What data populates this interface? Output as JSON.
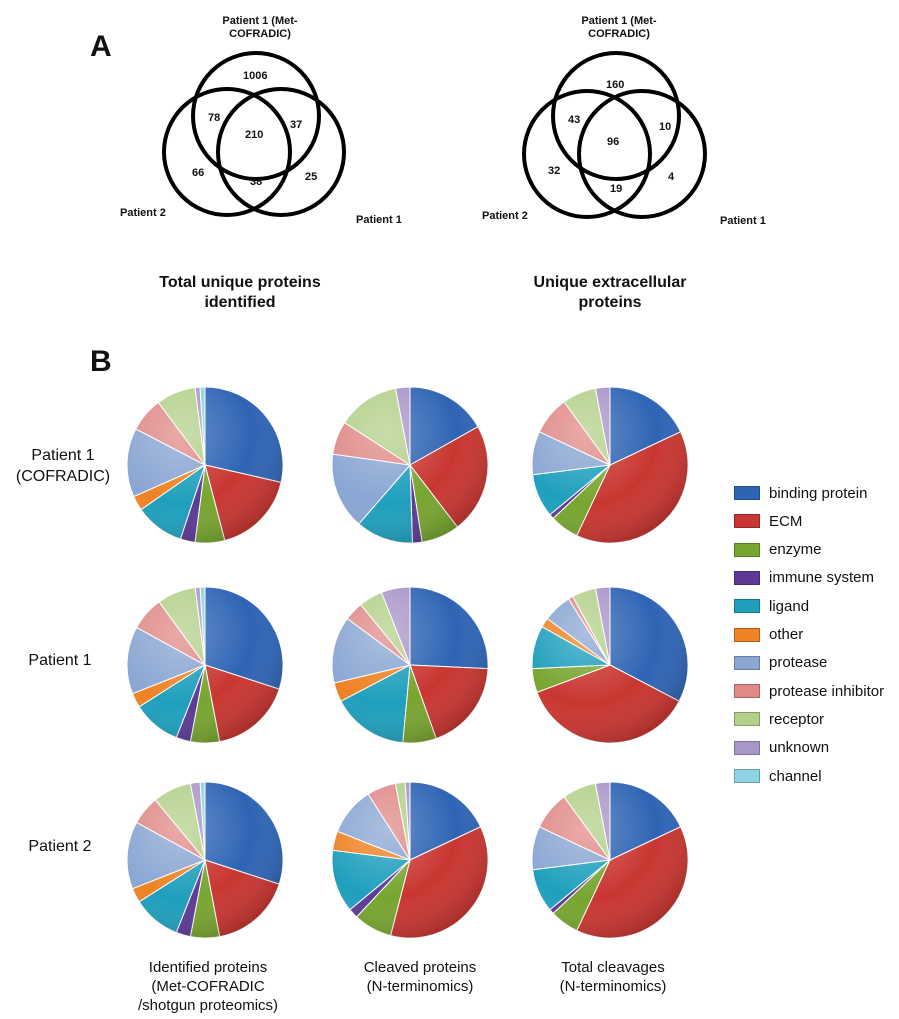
{
  "panels": {
    "a_label": "A",
    "b_label": "B"
  },
  "venn": [
    {
      "top_label": "Patient 1 (Met-\nCOFRADIC)",
      "left_label": "Patient 2",
      "right_label": "Patient 1",
      "title": "Total unique proteins\nidentified",
      "regions": {
        "top_only": "1006",
        "top_left": "78",
        "center": "210",
        "top_right": "37",
        "left_only": "66",
        "left_right": "38",
        "right_only": "25"
      }
    },
    {
      "top_label": "Patient 1 (Met-\nCOFRADIC)",
      "left_label": "Patient 2",
      "right_label": "Patient 1",
      "title": "Unique extracellular\nproteins",
      "regions": {
        "top_only": "160",
        "top_left": "43",
        "center": "96",
        "top_right": "10",
        "left_only": "32",
        "left_right": "19",
        "right_only": "4"
      }
    }
  ],
  "row_labels": [
    "Patient 1\n(COFRADIC)",
    "Patient 1",
    "Patient 2"
  ],
  "col_labels": [
    "Identified proteins\n(Met-COFRADIC\n/shotgun proteomics)",
    "Cleaved proteins\n(N-terminomics)",
    "Total cleavages\n(N-terminomics)"
  ],
  "legend": [
    {
      "label": "binding protein",
      "color": "#2f64b4"
    },
    {
      "label": "ECM",
      "color": "#c93631"
    },
    {
      "label": "enzyme",
      "color": "#78a530"
    },
    {
      "label": "immune system",
      "color": "#5c3a96"
    },
    {
      "label": "ligand",
      "color": "#1f9fbd"
    },
    {
      "label": "other",
      "color": "#ee8224"
    },
    {
      "label": "protease",
      "color": "#8aa6d3"
    },
    {
      "label": "protease inhibitor",
      "color": "#e08a88"
    },
    {
      "label": "receptor",
      "color": "#b3d08a"
    },
    {
      "label": "unknown",
      "color": "#a996c8"
    },
    {
      "label": "channel",
      "color": "#8fd2e2"
    }
  ],
  "chart_data": [
    {
      "type": "pie",
      "row": "Patient 1\n(COFRADIC)",
      "column": "Identified proteins\n(Met-COFRADIC\n/shotgun proteomics)",
      "slices": [
        {
          "category": "binding protein",
          "value": 28
        },
        {
          "category": "ECM",
          "value": 17
        },
        {
          "category": "enzyme",
          "value": 6
        },
        {
          "category": "immune system",
          "value": 3
        },
        {
          "category": "ligand",
          "value": 10
        },
        {
          "category": "other",
          "value": 3
        },
        {
          "category": "protease",
          "value": 14
        },
        {
          "category": "protease inhibitor",
          "value": 7
        },
        {
          "category": "receptor",
          "value": 8
        },
        {
          "category": "unknown",
          "value": 1
        },
        {
          "category": "channel",
          "value": 1
        }
      ]
    },
    {
      "type": "pie",
      "row": "Patient 1\n(COFRADIC)",
      "column": "Cleaved proteins\n(N-terminomics)",
      "slices": [
        {
          "category": "binding protein",
          "value": 17
        },
        {
          "category": "ECM",
          "value": 23
        },
        {
          "category": "enzyme",
          "value": 8
        },
        {
          "category": "immune system",
          "value": 2
        },
        {
          "category": "ligand",
          "value": 12
        },
        {
          "category": "other",
          "value": 0
        },
        {
          "category": "protease",
          "value": 16
        },
        {
          "category": "protease inhibitor",
          "value": 7
        },
        {
          "category": "receptor",
          "value": 13
        },
        {
          "category": "unknown",
          "value": 3
        },
        {
          "category": "channel",
          "value": 0
        }
      ]
    },
    {
      "type": "pie",
      "row": "Patient 1\n(COFRADIC)",
      "column": "Total cleavages\n(N-terminomics)",
      "slices": [
        {
          "category": "binding protein",
          "value": 18
        },
        {
          "category": "ECM",
          "value": 39
        },
        {
          "category": "enzyme",
          "value": 6
        },
        {
          "category": "immune system",
          "value": 1
        },
        {
          "category": "ligand",
          "value": 9
        },
        {
          "category": "other",
          "value": 0
        },
        {
          "category": "protease",
          "value": 9
        },
        {
          "category": "protease inhibitor",
          "value": 8
        },
        {
          "category": "receptor",
          "value": 7
        },
        {
          "category": "unknown",
          "value": 3
        },
        {
          "category": "channel",
          "value": 0
        }
      ]
    },
    {
      "type": "pie",
      "row": "Patient 1",
      "column": "Identified proteins\n(Met-COFRADIC\n/shotgun proteomics)",
      "slices": [
        {
          "category": "binding protein",
          "value": 30
        },
        {
          "category": "ECM",
          "value": 17
        },
        {
          "category": "enzyme",
          "value": 6
        },
        {
          "category": "immune system",
          "value": 3
        },
        {
          "category": "ligand",
          "value": 10
        },
        {
          "category": "other",
          "value": 3
        },
        {
          "category": "protease",
          "value": 14
        },
        {
          "category": "protease inhibitor",
          "value": 7
        },
        {
          "category": "receptor",
          "value": 8
        },
        {
          "category": "unknown",
          "value": 1
        },
        {
          "category": "channel",
          "value": 1
        }
      ]
    },
    {
      "type": "pie",
      "row": "Patient 1",
      "column": "Cleaved proteins\n(N-terminomics)",
      "slices": [
        {
          "category": "binding protein",
          "value": 26
        },
        {
          "category": "ECM",
          "value": 19
        },
        {
          "category": "enzyme",
          "value": 7
        },
        {
          "category": "immune system",
          "value": 0
        },
        {
          "category": "ligand",
          "value": 16
        },
        {
          "category": "other",
          "value": 4
        },
        {
          "category": "protease",
          "value": 14
        },
        {
          "category": "protease inhibitor",
          "value": 4
        },
        {
          "category": "receptor",
          "value": 5
        },
        {
          "category": "unknown",
          "value": 6
        },
        {
          "category": "channel",
          "value": 0
        }
      ]
    },
    {
      "type": "pie",
      "row": "Patient 1",
      "column": "Total cleavages\n(N-terminomics)",
      "slices": [
        {
          "category": "binding protein",
          "value": 33
        },
        {
          "category": "ECM",
          "value": 37
        },
        {
          "category": "enzyme",
          "value": 5
        },
        {
          "category": "immune system",
          "value": 0
        },
        {
          "category": "ligand",
          "value": 9
        },
        {
          "category": "other",
          "value": 2
        },
        {
          "category": "protease",
          "value": 6
        },
        {
          "category": "protease inhibitor",
          "value": 1
        },
        {
          "category": "receptor",
          "value": 5
        },
        {
          "category": "unknown",
          "value": 3
        },
        {
          "category": "channel",
          "value": 0
        }
      ]
    },
    {
      "type": "pie",
      "row": "Patient 2",
      "column": "Identified proteins\n(Met-COFRADIC\n/shotgun proteomics)",
      "slices": [
        {
          "category": "binding protein",
          "value": 30
        },
        {
          "category": "ECM",
          "value": 17
        },
        {
          "category": "enzyme",
          "value": 6
        },
        {
          "category": "immune system",
          "value": 3
        },
        {
          "category": "ligand",
          "value": 10
        },
        {
          "category": "other",
          "value": 3
        },
        {
          "category": "protease",
          "value": 14
        },
        {
          "category": "protease inhibitor",
          "value": 6
        },
        {
          "category": "receptor",
          "value": 8
        },
        {
          "category": "unknown",
          "value": 2
        },
        {
          "category": "channel",
          "value": 1
        }
      ]
    },
    {
      "type": "pie",
      "row": "Patient 2",
      "column": "Cleaved proteins\n(N-terminomics)",
      "slices": [
        {
          "category": "binding protein",
          "value": 18
        },
        {
          "category": "ECM",
          "value": 36
        },
        {
          "category": "enzyme",
          "value": 8
        },
        {
          "category": "immune system",
          "value": 2
        },
        {
          "category": "ligand",
          "value": 13
        },
        {
          "category": "other",
          "value": 4
        },
        {
          "category": "protease",
          "value": 10
        },
        {
          "category": "protease inhibitor",
          "value": 6
        },
        {
          "category": "receptor",
          "value": 2
        },
        {
          "category": "unknown",
          "value": 1
        },
        {
          "category": "channel",
          "value": 0
        }
      ]
    },
    {
      "type": "pie",
      "row": "Patient 2",
      "column": "Total cleavages\n(N-terminomics)",
      "slices": [
        {
          "category": "binding protein",
          "value": 18
        },
        {
          "category": "ECM",
          "value": 39
        },
        {
          "category": "enzyme",
          "value": 6
        },
        {
          "category": "immune system",
          "value": 1
        },
        {
          "category": "ligand",
          "value": 9
        },
        {
          "category": "other",
          "value": 0
        },
        {
          "category": "protease",
          "value": 9
        },
        {
          "category": "protease inhibitor",
          "value": 8
        },
        {
          "category": "receptor",
          "value": 7
        },
        {
          "category": "unknown",
          "value": 3
        },
        {
          "category": "channel",
          "value": 0
        }
      ]
    }
  ]
}
